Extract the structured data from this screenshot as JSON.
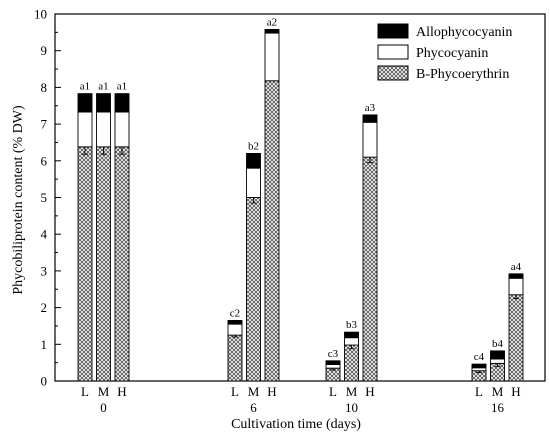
{
  "chart_data": {
    "type": "bar",
    "stacked": true,
    "xlabel": "Cultivation time (days)",
    "ylabel": "Phycobiliprotein content (% DW)",
    "ylim": [
      0,
      10
    ],
    "yticks": [
      0,
      1,
      2,
      3,
      4,
      5,
      6,
      7,
      8,
      9,
      10
    ],
    "groups": [
      "0",
      "6",
      "10",
      "16"
    ],
    "categories": [
      "L",
      "M",
      "H"
    ],
    "legend_position": "top-right",
    "series": [
      {
        "name": "B-Phycoerythrin",
        "pattern": "crosshatch",
        "values": [
          [
            6.38,
            6.38,
            6.38
          ],
          [
            1.25,
            5.0,
            8.18
          ],
          [
            0.35,
            0.98,
            6.1
          ],
          [
            0.28,
            0.48,
            2.35
          ]
        ],
        "error": [
          [
            0.2,
            0.2,
            0.2
          ],
          [
            0.05,
            0.15,
            0.0
          ],
          [
            0.05,
            0.1,
            0.15
          ],
          [
            0.05,
            0.08,
            0.1
          ]
        ]
      },
      {
        "name": "Phycocyanin",
        "pattern": "white",
        "values": [
          [
            0.95,
            0.95,
            0.95
          ],
          [
            0.3,
            0.8,
            1.3
          ],
          [
            0.1,
            0.2,
            0.95
          ],
          [
            0.08,
            0.12,
            0.45
          ]
        ]
      },
      {
        "name": "Allophycocyanin",
        "pattern": "black",
        "values": [
          [
            0.5,
            0.5,
            0.5
          ],
          [
            0.1,
            0.4,
            0.1
          ],
          [
            0.1,
            0.15,
            0.2
          ],
          [
            0.1,
            0.22,
            0.12
          ]
        ]
      }
    ],
    "bar_labels": [
      [
        "a1",
        "a1",
        "a1"
      ],
      [
        "c2",
        "b2",
        "a2"
      ],
      [
        "c3",
        "b3",
        "a3"
      ],
      [
        "c4",
        "b4",
        "a4"
      ]
    ],
    "colors": {
      "black": "#000000",
      "white": "#ffffff",
      "hatch": "#555555"
    }
  }
}
